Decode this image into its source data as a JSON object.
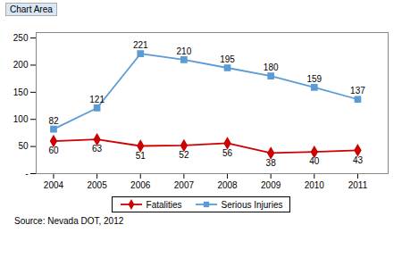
{
  "chart_data": {
    "type": "line",
    "x": [
      2004,
      2005,
      2006,
      2007,
      2008,
      2009,
      2010,
      2011
    ],
    "series": [
      {
        "name": "Fatalities",
        "color": "#cc0000",
        "marker": "diamond",
        "values": [
          60,
          63,
          51,
          52,
          56,
          38,
          40,
          43
        ]
      },
      {
        "name": "Serious Injuries",
        "color": "#5b9bd5",
        "marker": "square",
        "values": [
          82,
          121,
          221,
          210,
          195,
          180,
          159,
          137
        ]
      }
    ],
    "xlim": [
      2003.6,
      2011.7
    ],
    "xticks": [
      2004,
      2005,
      2006,
      2007,
      2008,
      2009,
      2010,
      2011
    ],
    "ylim": [
      0,
      260
    ],
    "yticks": [
      {
        "value": 0,
        "label": "-"
      },
      50,
      100,
      150,
      200,
      250
    ],
    "data_labels": true,
    "grid": false,
    "legend": "bottom",
    "annotations": [
      "Chart Area",
      "Source: Nevada DOT, 2012"
    ]
  }
}
